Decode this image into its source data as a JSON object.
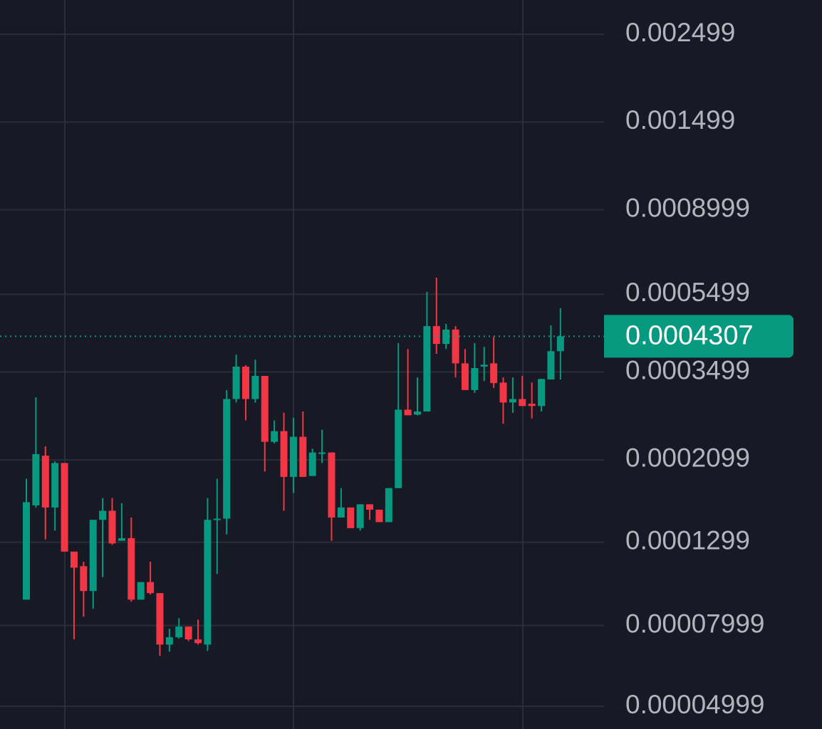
{
  "chart_data": {
    "type": "candlestick",
    "log_scale": true,
    "grid": true,
    "up_color": "#089981",
    "down_color": "#f23645",
    "ylim": [
      4.38e-05,
      0.00305
    ],
    "yticks": [
      0.002499,
      0.001499,
      0.0008999,
      0.0005499,
      0.0003499,
      0.0002099,
      0.0001299,
      7.999e-05,
      4.999e-05
    ],
    "last_price": 0.0004307,
    "open": [
      9.3e-05,
      0.000161,
      0.000215,
      0.000159,
      0.000206,
      0.000123,
      0.000113,
      9.78e-05,
      0.000148,
      0.000156,
      0.000131,
      0.000133,
      9.3e-05,
      0.000103,
      9.66e-05,
      7.16e-05,
      7.47e-05,
      7.95e-05,
      7.38e-05,
      7.16e-05,
      0.000148,
      0.000149,
      0.000299,
      0.000361,
      0.000299,
      0.000342,
      0.000233,
      0.000248,
      0.00019,
      0.00024,
      0.000191,
      0.000218,
      0.000219,
      0.00015,
      0.000159,
      0.000141,
      0.000162,
      0.000157,
      0.000146,
      0.000178,
      0.000281,
      0.000273,
      0.000278,
      0.000457,
      0.000412,
      0.000448,
      0.000368,
      0.000315,
      0.000361,
      0.000368,
      0.000329,
      0.000293,
      0.000299,
      0.000291,
      0.000287,
      0.000335,
      0.000395
    ],
    "high": [
      0.000188,
      0.000302,
      0.000227,
      0.000208,
      0.000206,
      0.000123,
      0.000116,
      0.000148,
      0.000168,
      0.000168,
      0.000163,
      0.00015,
      0.000103,
      0.000116,
      9.66e-05,
      7.85e-05,
      8.35e-05,
      7.95e-05,
      8.28e-05,
      0.000168,
      0.000188,
      0.000315,
      0.000387,
      0.000364,
      0.000376,
      0.000342,
      0.000264,
      0.000276,
      0.000268,
      0.000278,
      0.000224,
      0.00025,
      0.000219,
      0.000178,
      0.000159,
      0.000162,
      0.000162,
      0.000157,
      0.000178,
      0.000414,
      0.0004,
      0.000339,
      0.000558,
      0.000606,
      0.000463,
      0.000457,
      0.0004,
      0.000414,
      0.000405,
      0.000429,
      0.000339,
      0.000339,
      0.000342,
      0.000329,
      0.000336,
      0.000459,
      0.000507
    ],
    "low": [
      9.3e-05,
      0.000159,
      0.000132,
      0.000139,
      0.000123,
      7.38e-05,
      8.42e-05,
      8.82e-05,
      0.000106,
      0.000128,
      0.000131,
      9.19e-05,
      9.3e-05,
      9.58e-05,
      6.71e-05,
      6.87e-05,
      7.41e-05,
      7.31e-05,
      7.16e-05,
      6.9e-05,
      0.000108,
      0.000136,
      0.000293,
      0.000264,
      0.000293,
      0.000196,
      0.000231,
      0.000156,
      0.000173,
      0.00019,
      0.000191,
      0.000206,
      0.000131,
      0.00015,
      0.000141,
      0.000139,
      0.000148,
      0.000146,
      0.000146,
      0.000178,
      0.000272,
      0.000272,
      0.000278,
      0.000389,
      0.0004,
      0.000339,
      0.000315,
      0.00031,
      0.000332,
      0.000319,
      0.000259,
      0.000276,
      0.000287,
      0.000267,
      0.000278,
      0.000335,
      0.000335
    ],
    "close": [
      0.000164,
      0.000217,
      0.000159,
      0.000206,
      0.000123,
      0.000112,
      9.78e-05,
      0.000148,
      0.000156,
      0.000129,
      0.000133,
      9.3e-05,
      0.000103,
      9.66e-05,
      7.16e-05,
      7.47e-05,
      7.95e-05,
      7.38e-05,
      7.22e-05,
      0.000148,
      0.000149,
      0.000299,
      0.000361,
      0.000299,
      0.000342,
      0.000233,
      0.000248,
      0.00019,
      0.00024,
      0.00019,
      0.000219,
      0.000219,
      0.00015,
      0.000159,
      0.000141,
      0.000162,
      0.000157,
      0.000146,
      0.000178,
      0.000281,
      0.000272,
      0.000278,
      0.000457,
      0.000412,
      0.000448,
      0.000368,
      0.000315,
      0.000358,
      0.000365,
      0.000328,
      0.000293,
      0.000299,
      0.000287,
      0.000287,
      0.000336,
      0.000395,
      0.0004307
    ]
  }
}
